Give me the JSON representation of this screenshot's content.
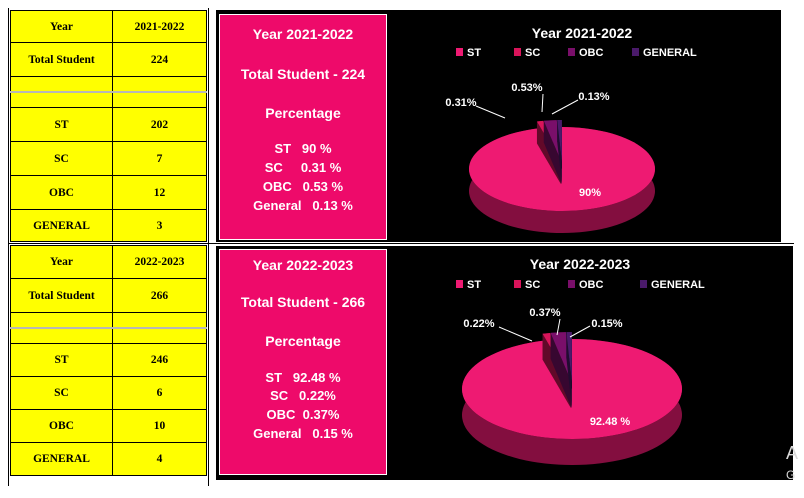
{
  "tables": [
    {
      "header": [
        "Year",
        "2021-2022"
      ],
      "total": [
        "Total Student",
        "224"
      ],
      "rows": [
        [
          "ST",
          "202"
        ],
        [
          "SC",
          "7"
        ],
        [
          "OBC",
          "12"
        ],
        [
          "GENERAL",
          "3"
        ]
      ]
    },
    {
      "header": [
        "Year",
        "2022-2023"
      ],
      "total": [
        "Total Student",
        "266"
      ],
      "rows": [
        [
          "ST",
          "246"
        ],
        [
          "SC",
          "6"
        ],
        [
          "OBC",
          "10"
        ],
        [
          "GENERAL",
          "4"
        ]
      ]
    }
  ],
  "summaries": [
    {
      "year": "Year 2021-2022",
      "total": "Total Student - 224",
      "percentage_heading": "Percentage",
      "lines": [
        "ST   90 %",
        "SC     0.31 %",
        "OBC   0.53 %",
        "General   0.13 %"
      ]
    },
    {
      "year": "Year 2022-2023",
      "total": "Total Student - 266",
      "percentage_heading": "Percentage",
      "lines": [
        "ST   92.48 %",
        "SC   0.22%",
        "OBC  0.37%",
        "General   0.15 %"
      ]
    }
  ],
  "colors": {
    "ST": "#ee1a72",
    "SC": "#d9145a",
    "OBC": "#7a0f6a",
    "GENERAL": "#4a1a6a",
    "panel_bg": "#000000",
    "textbox_bg": "#ee0a6a",
    "table_bg": "#ffff00"
  },
  "chart_data": [
    {
      "type": "pie",
      "title": "Year 2021-2022",
      "legend": [
        "ST",
        "SC",
        "OBC",
        "GENERAL"
      ],
      "legend_position": "top",
      "categories": [
        "ST",
        "SC",
        "OBC",
        "GENERAL"
      ],
      "values": [
        90,
        0.31,
        0.53,
        0.13
      ],
      "data_labels": [
        "90%",
        "0.31%",
        "0.53%",
        "0.13%"
      ]
    },
    {
      "type": "pie",
      "title": "Year 2022-2023",
      "legend": [
        "ST",
        "SC",
        "OBC",
        "GENERAL"
      ],
      "legend_position": "top",
      "categories": [
        "ST",
        "SC",
        "OBC",
        "GENERAL"
      ],
      "values": [
        92.48,
        0.22,
        0.37,
        0.15
      ],
      "data_labels": [
        "92.48 %",
        "0.22%",
        "0.37%",
        "0.15%"
      ]
    }
  ]
}
